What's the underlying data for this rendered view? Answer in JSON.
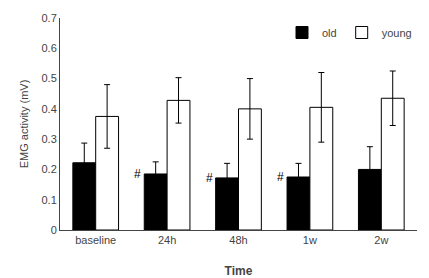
{
  "chart_data": {
    "type": "bar",
    "categories": [
      "baseline",
      "24h",
      "48h",
      "1w",
      "2w"
    ],
    "series": [
      {
        "name": "old",
        "color": "#000000",
        "values": [
          0.222,
          0.185,
          0.172,
          0.175,
          0.2
        ],
        "errors": [
          0.065,
          0.04,
          0.048,
          0.045,
          0.075
        ]
      },
      {
        "name": "young",
        "color": "#ffffff",
        "values": [
          0.375,
          0.428,
          0.4,
          0.405,
          0.435
        ],
        "errors": [
          0.105,
          0.075,
          0.1,
          0.115,
          0.09
        ]
      }
    ],
    "xlabel": "Time",
    "ylabel": "EMG activity (mV)",
    "ylim": [
      0,
      0.7
    ],
    "yticks": [
      0,
      0.1,
      0.2,
      0.3,
      0.4,
      0.5,
      0.6,
      0.7
    ],
    "grid": false,
    "legend": "upper right",
    "annotations": [
      {
        "text": "#",
        "category": "24h",
        "series": "old"
      },
      {
        "text": "#",
        "category": "48h",
        "series": "old"
      },
      {
        "text": "#",
        "category": "1w",
        "series": "old"
      }
    ]
  }
}
